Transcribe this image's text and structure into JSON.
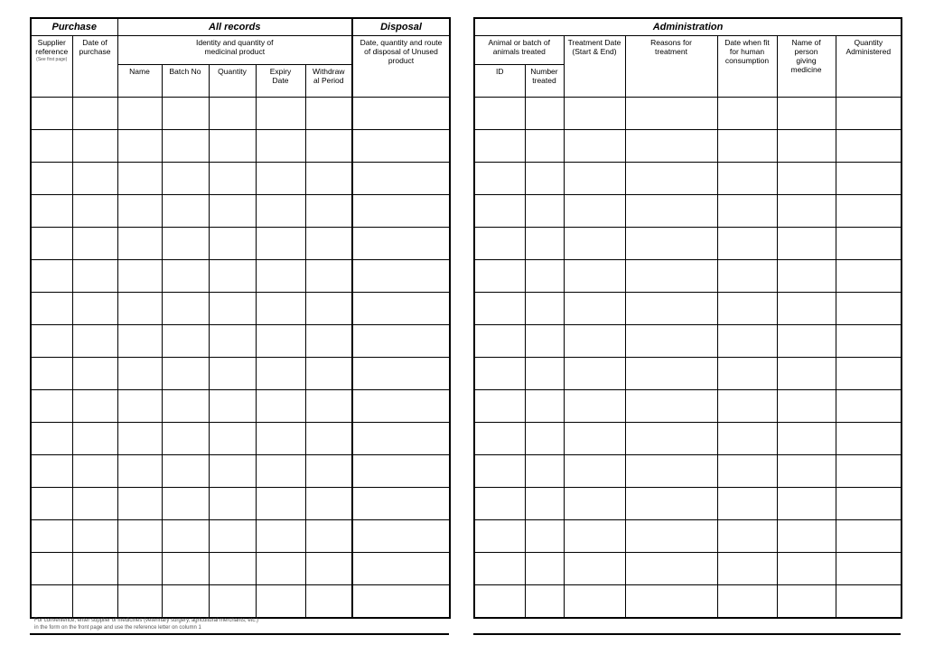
{
  "left_table": {
    "sections": {
      "purchase": "Purchase",
      "all_records": "All records",
      "disposal": "Disposal"
    },
    "headers": {
      "supplier_reference": "Supplier reference",
      "supplier_reference_note": "(See first page)",
      "date_of_purchase": "Date of purchase",
      "identity": "Identity and quantity of medicinal product",
      "disposal_desc": "Date, quantity and route of disposal of Unused product",
      "name": "Name",
      "batch_no": "Batch No",
      "quantity": "Quantity",
      "expiry_date": "Expiry Date",
      "withdrawal_period": "Withdrawal Period"
    },
    "body_rows": 16
  },
  "right_table": {
    "section": "Administration",
    "headers": {
      "animal_batch": "Animal or batch of animals treated",
      "id": "ID",
      "number_treated": "Number treated",
      "treatment_date": "Treatment Date (Start & End)",
      "reasons": "Reasons for treatment",
      "fit_human": "Date when fit for human consumption",
      "person": "Name of person giving medicine",
      "quantity_administered": "Quantity Administered"
    },
    "body_rows": 16
  },
  "footnote": {
    "line1": "For convenience, enter supplier of medicines (veterinary surgery, agricultural merchants, etc.)",
    "line2": "in the form on the front page and use the reference letter on column 1"
  }
}
